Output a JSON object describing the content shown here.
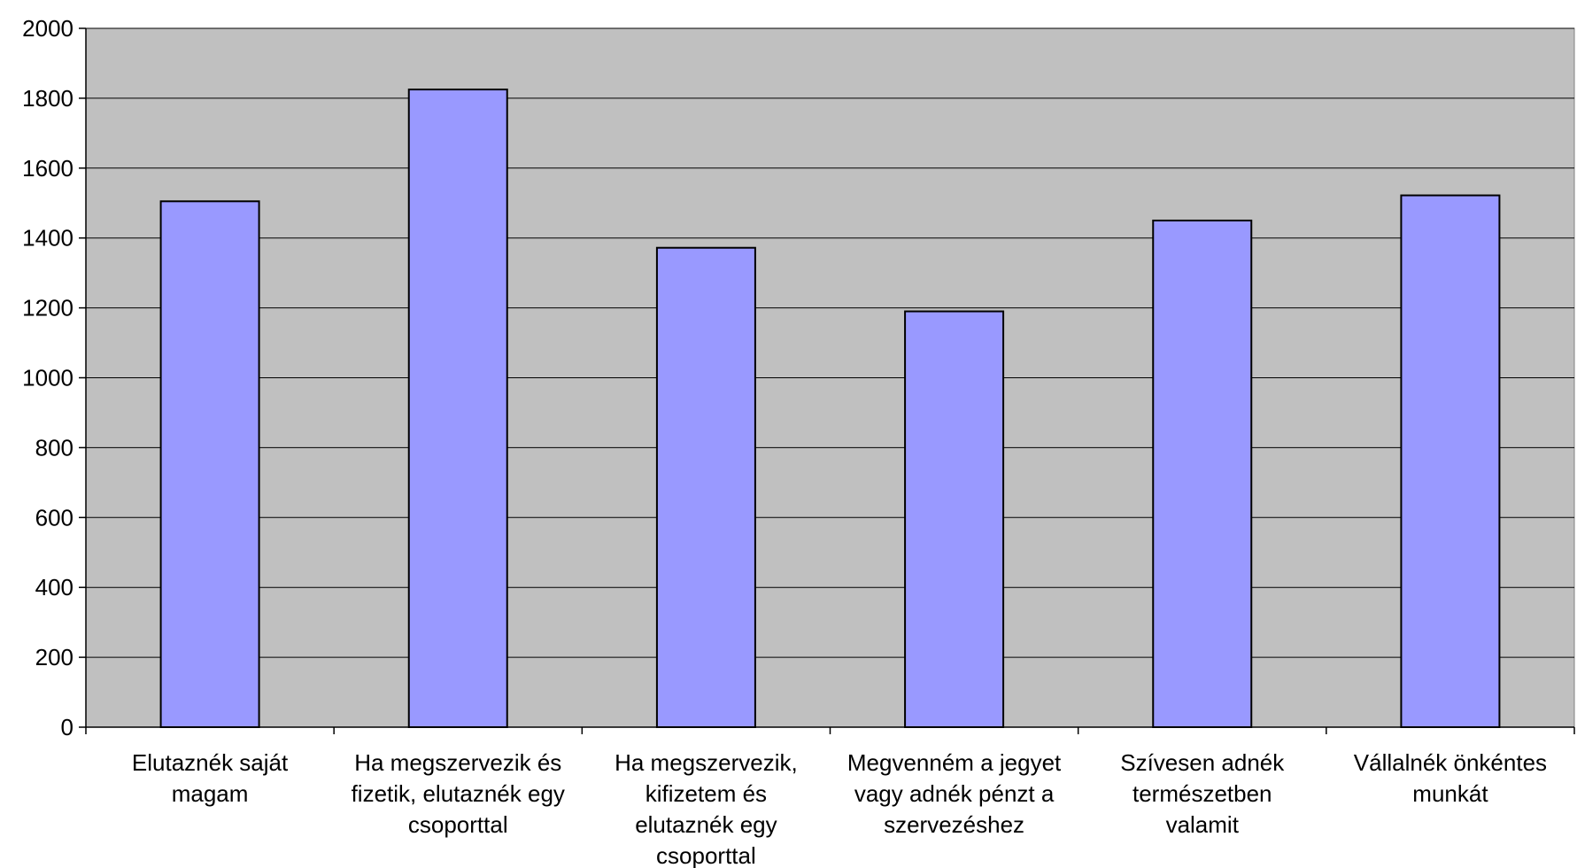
{
  "chart_data": {
    "type": "bar",
    "categories": [
      [
        "Elutaznék saját",
        "magam"
      ],
      [
        "Ha megszervezik és",
        "fizetik, elutaznék egy",
        "csoporttal"
      ],
      [
        "Ha megszervezik,",
        "kifizetem és",
        "elutaznék egy",
        "csoporttal"
      ],
      [
        "Megvenném a jegyet",
        "vagy adnék pénzt a",
        "szervezéshez"
      ],
      [
        "Szívesen adnék",
        "természetben",
        "valamit"
      ],
      [
        "Vállalnék önkéntes",
        "munkát"
      ]
    ],
    "values": [
      1505,
      1825,
      1372,
      1190,
      1450,
      1522
    ],
    "ylim": [
      0,
      2000
    ],
    "yticks": [
      "0",
      "200",
      "400",
      "600",
      "800",
      "1000",
      "1200",
      "1400",
      "1600",
      "1800",
      "2000"
    ],
    "grid": true,
    "legend": "none",
    "colors": {
      "bar_fill": "#9999ff",
      "bar_stroke": "#000000",
      "plot_background": "#c0c0c0",
      "gridline": "#000000"
    }
  }
}
